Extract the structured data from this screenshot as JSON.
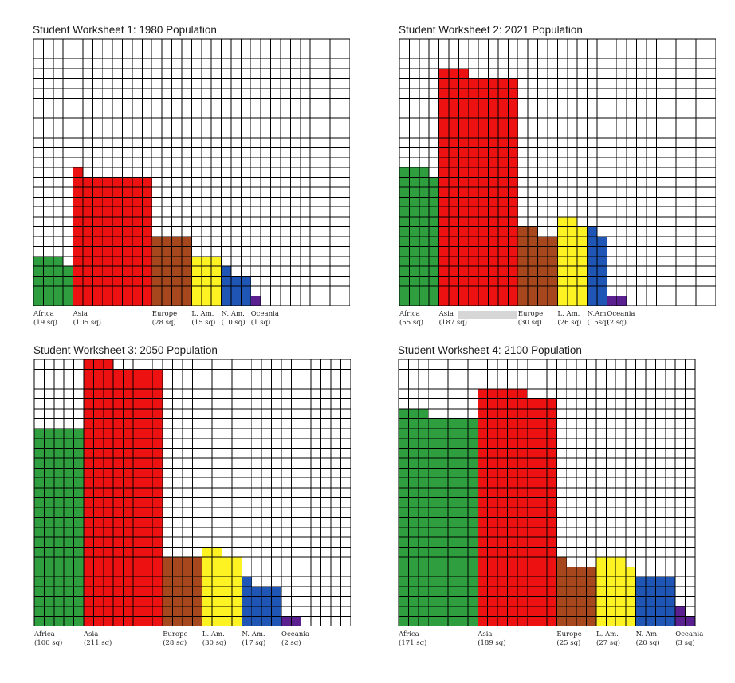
{
  "colors": {
    "Africa": "#2f9e3f",
    "Asia": "#ee1111",
    "Europe": "#a6471d",
    "L. Am.": "#fdf222",
    "N. Am.": "#1f56b5",
    "Oceania": "#5b208f",
    "grid_line": "#000000",
    "background": "#ffffff"
  },
  "chart_data": [
    {
      "type": "bar",
      "title": "Student Worksheet 1: 1980 Population",
      "categories": [
        "Africa",
        "Asia",
        "Europe",
        "L. Am.",
        "N. Am.",
        "Oceania"
      ],
      "values": [
        19,
        105,
        28,
        15,
        10,
        1
      ],
      "value_labels": [
        "(19 sq)",
        "(105 sq)",
        "(28 sq)",
        "(15 sq)",
        "(10 sq)",
        "(1 sq)"
      ],
      "unit": "sq",
      "grid": true,
      "grid_columns": 32,
      "grid_rows": 27
    },
    {
      "type": "bar",
      "title": "Student Worksheet 2: 2021 Population",
      "categories": [
        "Africa",
        "Asia",
        "Europe",
        "L. Am.",
        "N.Am.",
        "Oceania"
      ],
      "values": [
        55,
        187,
        30,
        26,
        15,
        2
      ],
      "value_labels": [
        "(55 sq)",
        "(187 sq)",
        "(30 sq)",
        "(26 sq)",
        "(15sq)",
        "(2 sq)"
      ],
      "unit": "sq",
      "grid": true,
      "grid_columns": 32,
      "grid_rows": 27
    },
    {
      "type": "bar",
      "title": "Student Worksheet 3: 2050 Population",
      "categories": [
        "Africa",
        "Asia",
        "Europe",
        "L. Am.",
        "N. Am.",
        "Oceania"
      ],
      "values": [
        100,
        211,
        28,
        30,
        17,
        2
      ],
      "value_labels": [
        "(100 sq)",
        "(211 sq)",
        "(28 sq)",
        "(30 sq)",
        "(17 sq)",
        "(2 sq)"
      ],
      "unit": "sq",
      "grid": true,
      "grid_columns": 32,
      "grid_rows": 27
    },
    {
      "type": "bar",
      "title": "Student Worksheet 4: 2100 Population",
      "categories": [
        "Africa",
        "Asia",
        "Europe",
        "L. Am.",
        "N. Am.",
        "Oceania"
      ],
      "values": [
        171,
        189,
        25,
        27,
        20,
        3
      ],
      "value_labels": [
        "(171 sq)",
        "(189 sq)",
        "(25 sq)",
        "(27 sq)",
        "(20 sq)",
        "(3 sq)"
      ],
      "unit": "sq",
      "grid": true,
      "grid_columns": 30,
      "grid_rows": 27
    }
  ]
}
